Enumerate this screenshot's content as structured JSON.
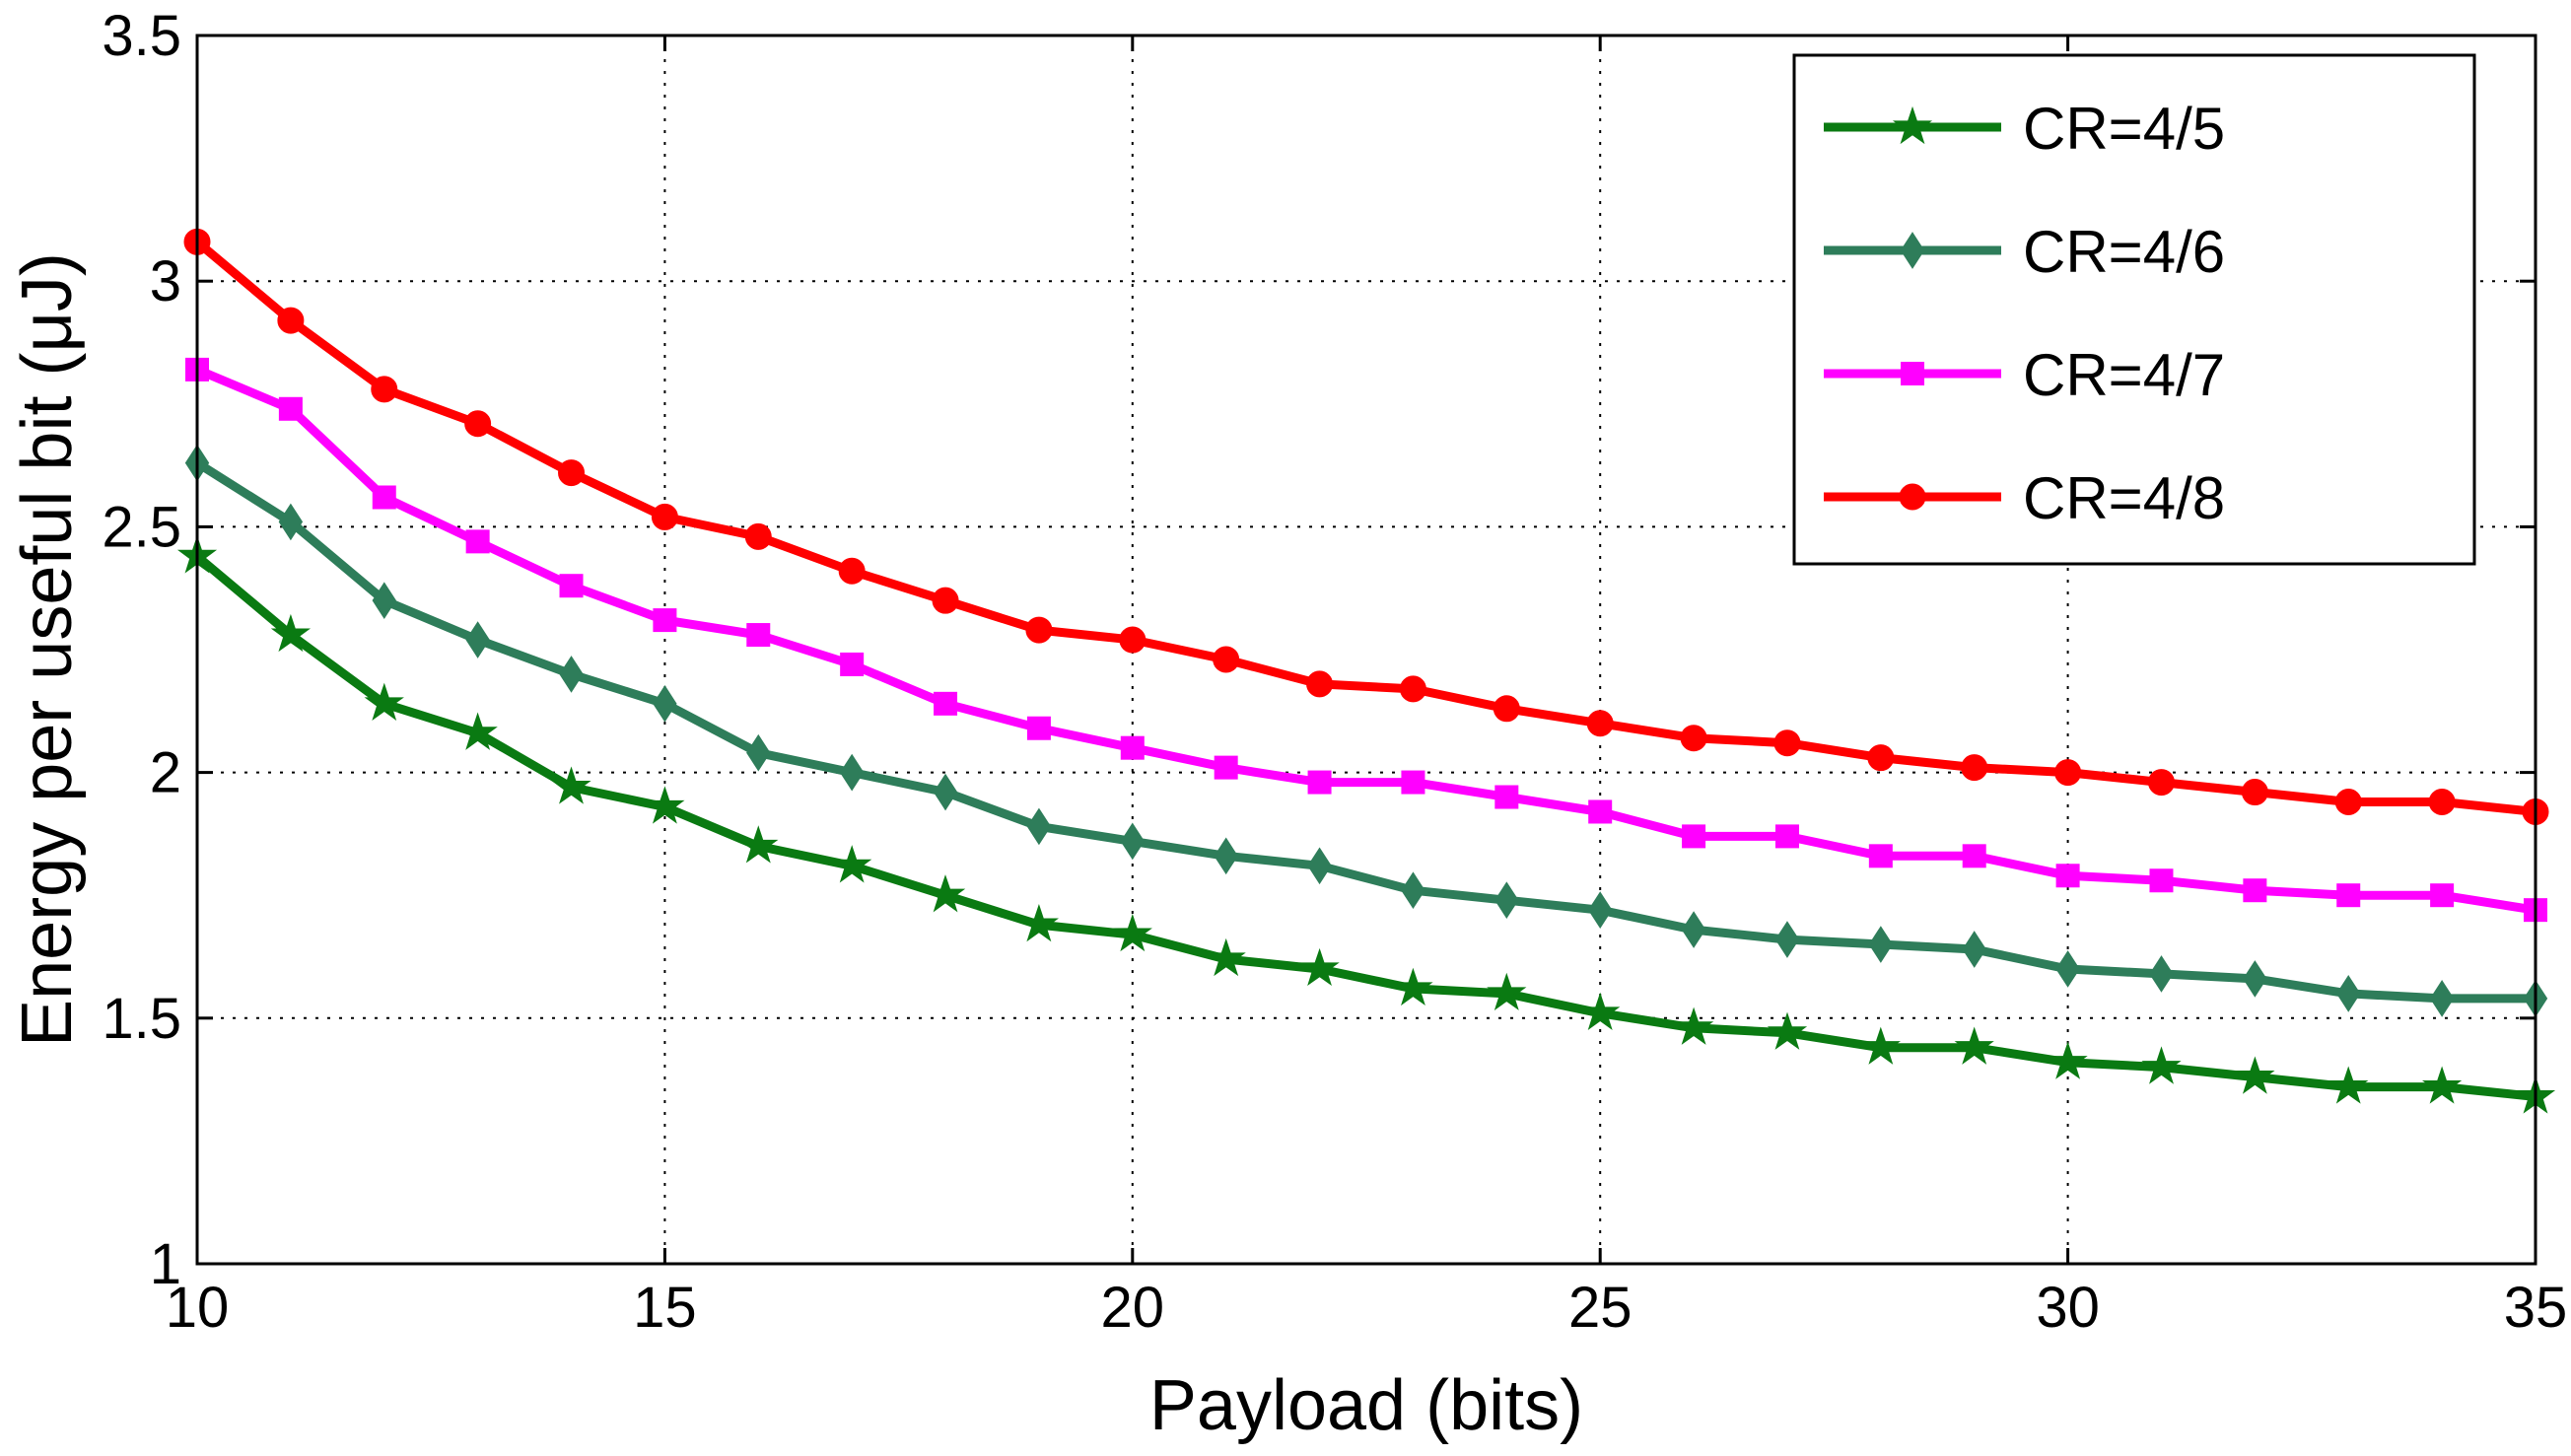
{
  "chart_data": {
    "type": "line",
    "title": "",
    "xlabel": "Payload (bits)",
    "ylabel": "Energy per useful bit (μJ)",
    "xlim": [
      10,
      35
    ],
    "ylim": [
      1,
      3.5
    ],
    "xticks": [
      10,
      15,
      20,
      25,
      30,
      35
    ],
    "yticks": [
      1,
      1.5,
      2,
      2.5,
      3,
      3.5
    ],
    "xtick_labels": [
      "10",
      "15",
      "20",
      "25",
      "30",
      "35"
    ],
    "ytick_labels": [
      "1",
      "1.5",
      "2",
      "2.5",
      "3",
      "3.5"
    ],
    "grid": true,
    "legend_position": "top-right",
    "x": [
      10,
      11,
      12,
      13,
      14,
      15,
      16,
      17,
      18,
      19,
      20,
      21,
      22,
      23,
      24,
      25,
      26,
      27,
      28,
      29,
      30,
      31,
      32,
      33,
      34,
      35
    ],
    "series": [
      {
        "name": "CR=4/5",
        "color": "#0a7a12",
        "marker": "star",
        "values": [
          2.44,
          2.28,
          2.14,
          2.08,
          1.97,
          1.93,
          1.85,
          1.81,
          1.75,
          1.69,
          1.67,
          1.62,
          1.6,
          1.56,
          1.55,
          1.51,
          1.48,
          1.47,
          1.44,
          1.44,
          1.41,
          1.4,
          1.38,
          1.36,
          1.36,
          1.34
        ]
      },
      {
        "name": "CR=4/6",
        "color": "#2e7d5a",
        "marker": "diamond",
        "values": [
          2.63,
          2.51,
          2.35,
          2.27,
          2.2,
          2.14,
          2.04,
          2.0,
          1.96,
          1.89,
          1.86,
          1.83,
          1.81,
          1.76,
          1.74,
          1.72,
          1.68,
          1.66,
          1.65,
          1.64,
          1.6,
          1.59,
          1.58,
          1.55,
          1.54,
          1.54
        ]
      },
      {
        "name": "CR=4/7",
        "color": "#ff00ff",
        "marker": "square",
        "values": [
          2.82,
          2.74,
          2.56,
          2.47,
          2.38,
          2.31,
          2.28,
          2.22,
          2.14,
          2.09,
          2.05,
          2.01,
          1.98,
          1.98,
          1.95,
          1.92,
          1.87,
          1.87,
          1.83,
          1.83,
          1.79,
          1.78,
          1.76,
          1.75,
          1.75,
          1.72
        ]
      },
      {
        "name": "CR=4/8",
        "color": "#ff0000",
        "marker": "circle",
        "values": [
          3.08,
          2.92,
          2.78,
          2.71,
          2.61,
          2.52,
          2.48,
          2.41,
          2.35,
          2.29,
          2.27,
          2.23,
          2.18,
          2.17,
          2.13,
          2.1,
          2.07,
          2.06,
          2.03,
          2.01,
          2.0,
          1.98,
          1.96,
          1.94,
          1.94,
          1.92
        ]
      }
    ]
  }
}
